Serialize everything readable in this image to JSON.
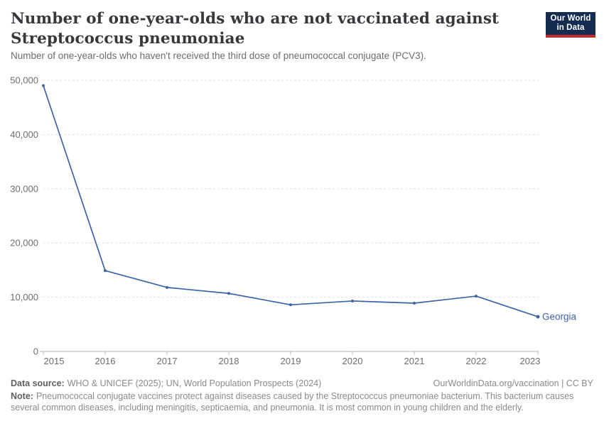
{
  "header": {
    "title_line1": "Number of one-year-olds who are not vaccinated against",
    "title_line2": "Streptococcus pneumoniae",
    "subtitle": "Number of one-year-olds who haven't received the third dose of pneumococcal conjugate (PCV3).",
    "logo": {
      "line1": "Our World",
      "line2": "in Data",
      "bg_color": "#152c50",
      "bar_color": "#c22a2f"
    }
  },
  "chart_data": {
    "type": "line",
    "x": [
      2015,
      2016,
      2017,
      2018,
      2019,
      2020,
      2021,
      2022,
      2023
    ],
    "series": [
      {
        "name": "Georgia",
        "color": "#3d64a5",
        "values": [
          49000,
          14900,
          11800,
          10700,
          8600,
          9300,
          8900,
          10200,
          6400
        ]
      }
    ],
    "end_label": "Georgia",
    "ylim": [
      0,
      50000
    ],
    "yticks": [
      0,
      10000,
      20000,
      30000,
      40000,
      50000
    ],
    "ytick_labels": [
      "0",
      "10,000",
      "20,000",
      "30,000",
      "40,000",
      "50,000"
    ],
    "grid": "dashed horizontal",
    "legend_position": "end-of-line",
    "axis_color": "#b3b3b3",
    "grid_color": "#e2e2e2",
    "tick_label_color": "#6e6e6e"
  },
  "footer": {
    "datasource_label": "Data source:",
    "datasource_text": "WHO & UNICEF (2025); UN, World Population Prospects (2024)",
    "link_text": "OurWorldinData.org/vaccination | CC BY",
    "note_label": "Note:",
    "note_text": "Pneumococcal conjugate vaccines protect against diseases caused by the Streptococcus pneumoniae bacterium. This bacterium causes several common diseases, including meningitis, septicaemia, and pneumonia. It is most common in young children and the elderly."
  }
}
